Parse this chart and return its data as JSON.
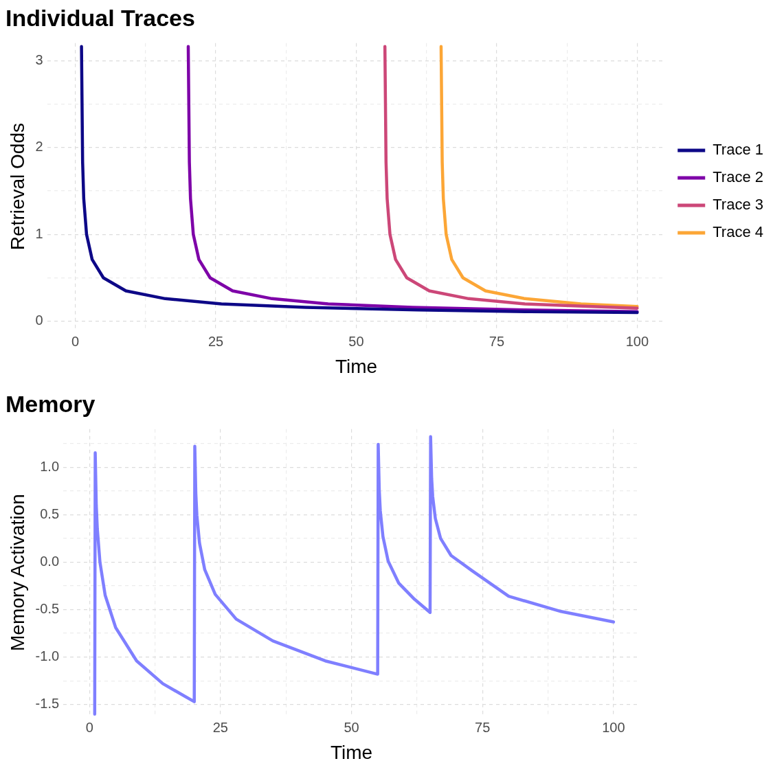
{
  "chart_data": [
    {
      "type": "line",
      "title": "Individual Traces",
      "xlabel": "Time",
      "ylabel": "Retrieval Odds",
      "xlim": [
        -5,
        105
      ],
      "ylim": [
        -0.1,
        3.2
      ],
      "xticks": [
        0,
        {
          "value": 12.5,
          "label": null
        },
        25,
        {
          "value": 37.5,
          "label": null
        },
        50,
        {
          "value": 62.5,
          "label": null
        },
        75,
        {
          "value": 87.5,
          "label": null
        },
        100
      ],
      "yticks": [
        0,
        {
          "value": 0.5,
          "label": null
        },
        1,
        {
          "value": 1.5,
          "label": null
        },
        2,
        {
          "value": 2.5,
          "label": null
        },
        3
      ],
      "grid": true,
      "legend": "right",
      "series": [
        {
          "name": "Trace 1",
          "color": "#0d0887",
          "x": [
            1.1,
            1.3,
            1.5,
            2,
            3,
            5,
            9,
            16,
            26,
            41,
            61,
            81,
            100
          ],
          "values": [
            3.16,
            1.83,
            1.41,
            1.0,
            0.71,
            0.5,
            0.35,
            0.26,
            0.2,
            0.16,
            0.13,
            0.11,
            0.1
          ]
        },
        {
          "name": "Trace 2",
          "color": "#7e03a8",
          "x": [
            20.1,
            20.3,
            20.5,
            21,
            22,
            24,
            28,
            35,
            45,
            60,
            80,
            100
          ],
          "values": [
            3.16,
            1.83,
            1.41,
            1.0,
            0.71,
            0.5,
            0.35,
            0.26,
            0.2,
            0.16,
            0.13,
            0.11
          ]
        },
        {
          "name": "Trace 3",
          "color": "#cc4778",
          "x": [
            55.1,
            55.3,
            55.5,
            56,
            57,
            59,
            63,
            70,
            80,
            100
          ],
          "values": [
            3.16,
            1.83,
            1.41,
            1.0,
            0.71,
            0.5,
            0.35,
            0.26,
            0.2,
            0.15
          ]
        },
        {
          "name": "Trace 4",
          "color": "#fca636",
          "x": [
            65.1,
            65.3,
            65.5,
            66,
            67,
            69,
            73,
            80,
            90,
            100
          ],
          "values": [
            3.16,
            1.83,
            1.41,
            1.0,
            0.71,
            0.5,
            0.35,
            0.26,
            0.2,
            0.17
          ]
        }
      ]
    },
    {
      "type": "line",
      "title": "Memory",
      "xlabel": "Time",
      "ylabel": "Memory Activation",
      "xlim": [
        -5,
        105
      ],
      "ylim": [
        -1.62,
        1.4
      ],
      "xticks": [
        0,
        {
          "value": 12.5,
          "label": null
        },
        25,
        {
          "value": 37.5,
          "label": null
        },
        50,
        {
          "value": 62.5,
          "label": null
        },
        75,
        {
          "value": 87.5,
          "label": null
        },
        100
      ],
      "yticks": [
        {
          "value": -1.5,
          "label": "-1.5"
        },
        {
          "value": -1.25,
          "label": null
        },
        {
          "value": -1,
          "label": "-1.0"
        },
        {
          "value": -0.75,
          "label": null
        },
        {
          "value": -0.5,
          "label": "-0.5"
        },
        {
          "value": -0.25,
          "label": null
        },
        {
          "value": 0,
          "label": "0.0"
        },
        {
          "value": 0.25,
          "label": null
        },
        {
          "value": 0.5,
          "label": "0.5"
        },
        {
          "value": 0.75,
          "label": null
        },
        {
          "value": 1,
          "label": "1.0"
        },
        {
          "value": 1.25,
          "label": null
        }
      ],
      "grid": true,
      "series": [
        {
          "color": "#7f7fff",
          "x": [
            1,
            1.1,
            1.3,
            1.5,
            2,
            3,
            5,
            9,
            14,
            20,
            20.1,
            20.3,
            20.5,
            21,
            22,
            24,
            28,
            35,
            45,
            55,
            55.1,
            55.3,
            55.5,
            56,
            57,
            59,
            62,
            65,
            65.1,
            65.3,
            65.5,
            66,
            67,
            69,
            73,
            80,
            90,
            100
          ],
          "values": [
            -1.6,
            1.15,
            0.6,
            0.35,
            0,
            -0.35,
            -0.69,
            -1.04,
            -1.28,
            -1.47,
            1.22,
            0.72,
            0.49,
            0.2,
            -0.08,
            -0.34,
            -0.6,
            -0.83,
            -1.04,
            -1.18,
            1.24,
            0.76,
            0.54,
            0.27,
            0.01,
            -0.22,
            -0.39,
            -0.53,
            1.32,
            0.88,
            0.69,
            0.46,
            0.25,
            0.07,
            -0.09,
            -0.36,
            -0.52,
            -0.63
          ]
        }
      ]
    }
  ]
}
